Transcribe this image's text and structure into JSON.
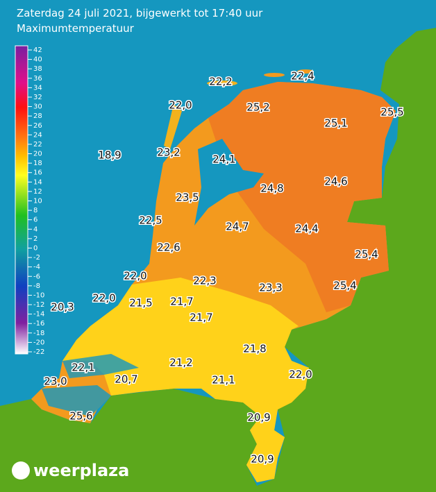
{
  "header": {
    "title": "Zaterdag 24 juli 2021, bijgewerkt tot 17:40 uur",
    "subtitle": "Maximumtemperatuur"
  },
  "legend": {
    "ticks": [
      42,
      40,
      38,
      36,
      34,
      32,
      30,
      28,
      26,
      24,
      22,
      20,
      18,
      16,
      14,
      12,
      10,
      8,
      6,
      4,
      2,
      0,
      -2,
      -4,
      -6,
      -8,
      -10,
      -12,
      -14,
      -16,
      -18,
      -20,
      -22
    ]
  },
  "stations": [
    "22,2",
    "22,4",
    "22,0",
    "25,2",
    "25,5",
    "25,1",
    "18,9",
    "23,2",
    "24,1",
    "24,8",
    "24,6",
    "23,5",
    "22,5",
    "24,7",
    "24,4",
    "22,6",
    "25,4",
    "22,0",
    "22,3",
    "23,3",
    "25,4",
    "20,3",
    "22,0",
    "21,5",
    "21,7",
    "21,7",
    "21,8",
    "21,2",
    "22,1",
    "22,0",
    "23,0",
    "20,7",
    "21,1",
    "25,6",
    "20,9",
    "20,9"
  ],
  "logo": "weerplaza"
}
